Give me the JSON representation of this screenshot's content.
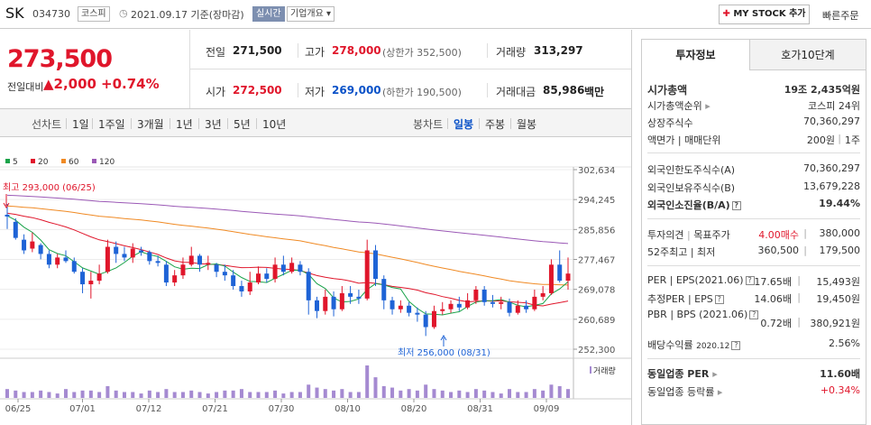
{
  "header": {
    "name": "SK",
    "code": "034730",
    "market": "코스피",
    "date": "2021.09.17 기준(장마감)",
    "realtime": "실시간",
    "company_info": "기업개요",
    "mystock_button": "MY STOCK 추가",
    "quick_order": "빠른주문"
  },
  "price": {
    "current": "273,500",
    "change_label": "전일대비",
    "change_value": "2,000",
    "change_pct": "+0.74%"
  },
  "summary": {
    "prev_label": "전일",
    "prev": "271,500",
    "high_label": "고가",
    "high": "278,000",
    "upper_limit": "(상한가 352,500)",
    "volume_label": "거래량",
    "volume": "313,297",
    "open_label": "시가",
    "open": "272,500",
    "low_label": "저가",
    "low": "269,000",
    "lower_limit": "(하한가 190,500)",
    "amount_label": "거래대금",
    "amount": "85,986",
    "amount_unit": "백만"
  },
  "periods": {
    "line_label": "선차트",
    "items": [
      "1일",
      "1주일",
      "3개월",
      "1년",
      "3년",
      "5년",
      "10년"
    ],
    "candle_label": "봉차트",
    "candle_items": [
      "일봉",
      "주봉",
      "월봉"
    ],
    "active_candle": "일봉"
  },
  "chart_data": {
    "type": "candlestick",
    "legend": [
      {
        "name": "5",
        "color": "#1aa34a"
      },
      {
        "name": "20",
        "color": "#e0162b"
      },
      {
        "name": "60",
        "color": "#f08a24"
      },
      {
        "name": "120",
        "color": "#9b59b6"
      }
    ],
    "y_ticks": [
      "302,634",
      "294,245",
      "285,856",
      "277,467",
      "269,078",
      "260,689",
      "252,300"
    ],
    "ylim": [
      252300,
      302634
    ],
    "x_ticks": [
      "06/25",
      "07/01",
      "07/12",
      "07/21",
      "07/30",
      "08/10",
      "08/20",
      "08/31",
      "09/09"
    ],
    "high_annotation": "최고 293,000 (06/25)",
    "low_annotation": "최저 256,000 (08/31)",
    "volume_label": "거래량",
    "candles": [
      [
        290000,
        289500,
        293000,
        286000
      ],
      [
        288000,
        283500,
        289000,
        283000
      ],
      [
        283000,
        280000,
        284500,
        279000
      ],
      [
        280500,
        282500,
        285000,
        279500
      ],
      [
        281500,
        279000,
        282000,
        277500
      ],
      [
        279000,
        276000,
        280000,
        275000
      ],
      [
        276000,
        278000,
        279000,
        275000
      ],
      [
        278000,
        277000,
        280000,
        276500
      ],
      [
        277000,
        274000,
        278000,
        273500
      ],
      [
        274000,
        270500,
        275000,
        268000
      ],
      [
        270500,
        271500,
        274000,
        266500
      ],
      [
        271500,
        273500,
        276000,
        270500
      ],
      [
        274000,
        281000,
        283000,
        273500
      ],
      [
        281000,
        279000,
        282500,
        276500
      ],
      [
        279000,
        278000,
        281000,
        277000
      ],
      [
        278000,
        280500,
        282000,
        276500
      ],
      [
        280000,
        279500,
        281000,
        278500
      ],
      [
        279500,
        277000,
        280000,
        276000
      ],
      [
        277000,
        276500,
        278500,
        275500
      ],
      [
        276000,
        271000,
        277000,
        270000
      ],
      [
        271000,
        273000,
        274500,
        270000
      ],
      [
        273000,
        276000,
        278000,
        272000
      ],
      [
        276000,
        278500,
        281000,
        275500
      ],
      [
        278500,
        276000,
        279000,
        274000
      ],
      [
        276000,
        276500,
        278500,
        274500
      ],
      [
        276000,
        274000,
        276500,
        272500
      ],
      [
        274000,
        273000,
        276000,
        271500
      ],
      [
        273000,
        270000,
        274500,
        269000
      ],
      [
        270000,
        268500,
        271500,
        267000
      ],
      [
        268500,
        271000,
        274000,
        267500
      ],
      [
        271000,
        273500,
        275500,
        270500
      ],
      [
        273500,
        272000,
        275000,
        271000
      ],
      [
        272000,
        276000,
        278000,
        271000
      ],
      [
        276000,
        274000,
        278500,
        273000
      ],
      [
        274000,
        276500,
        278000,
        273500
      ],
      [
        276000,
        274000,
        277000,
        273000
      ],
      [
        274000,
        266000,
        275000,
        262000
      ],
      [
        266000,
        263000,
        267000,
        261000
      ],
      [
        263000,
        267000,
        269000,
        262000
      ],
      [
        267000,
        263500,
        268500,
        261500
      ],
      [
        263500,
        268000,
        270000,
        263000
      ],
      [
        268000,
        267000,
        270000,
        265000
      ],
      [
        267000,
        266500,
        269000,
        265000
      ],
      [
        266500,
        280000,
        283000,
        266000
      ],
      [
        280000,
        272000,
        281500,
        270000
      ],
      [
        272000,
        266000,
        273000,
        263500
      ],
      [
        266000,
        263500,
        267000,
        262000
      ],
      [
        263500,
        264500,
        266000,
        262500
      ],
      [
        264500,
        262500,
        265500,
        261500
      ],
      [
        262500,
        262000,
        264000,
        260000
      ],
      [
        262000,
        258500,
        263000,
        256000
      ],
      [
        258500,
        263000,
        264500,
        258000
      ],
      [
        263000,
        263500,
        265500,
        262000
      ],
      [
        263500,
        265000,
        266000,
        262500
      ],
      [
        265000,
        264000,
        267000,
        263000
      ],
      [
        264000,
        266000,
        268000,
        263500
      ],
      [
        266000,
        269000,
        270000,
        265000
      ],
      [
        269000,
        265500,
        270000,
        264500
      ],
      [
        265500,
        265000,
        267500,
        264000
      ],
      [
        265000,
        265500,
        267000,
        263500
      ],
      [
        265500,
        262500,
        266500,
        261500
      ],
      [
        262500,
        264500,
        266000,
        262000
      ],
      [
        264500,
        263500,
        266000,
        262500
      ],
      [
        263500,
        267000,
        269000,
        263000
      ],
      [
        267000,
        268000,
        270000,
        266000
      ],
      [
        268000,
        276000,
        277500,
        267500
      ],
      [
        276000,
        271500,
        280000,
        271000
      ],
      [
        271500,
        273500,
        278000,
        269000
      ]
    ],
    "volumes": [
      6,
      5,
      4,
      4,
      5,
      4,
      3,
      6,
      4,
      5,
      5,
      4,
      8,
      5,
      4,
      4,
      3,
      5,
      4,
      6,
      4,
      4,
      5,
      4,
      3,
      4,
      5,
      5,
      6,
      4,
      4,
      4,
      5,
      3,
      4,
      4,
      9,
      7,
      6,
      5,
      6,
      4,
      4,
      22,
      14,
      8,
      7,
      5,
      6,
      5,
      9,
      6,
      5,
      4,
      5,
      4,
      6,
      5,
      4,
      3,
      6,
      4,
      4,
      6,
      5,
      9,
      8,
      6
    ]
  },
  "invest": {
    "tab1": "투자정보",
    "tab2": "호가10단계",
    "market_cap_label": "시가총액",
    "market_cap": "19조 2,435억원",
    "market_cap_rank_label": "시가총액순위",
    "market_cap_rank": "코스피 24위",
    "shares_label": "상장주식수",
    "shares": "70,360,297",
    "par_label": "액면가 | 매매단위",
    "par": "200원",
    "unit": "1주",
    "foreign_limit_label": "외국인한도주식수(A)",
    "foreign_limit": "70,360,297",
    "foreign_hold_label": "외국인보유주식수(B)",
    "foreign_hold": "13,679,228",
    "foreign_rate_label": "외국인소진율(B/A)",
    "foreign_rate": "19.44%",
    "opinion_label": "투자의견",
    "target_label": "목표주가",
    "opinion": "4.00매수",
    "target": "380,000",
    "w52_label": "52주최고 | 최저",
    "w52_high": "360,500",
    "w52_low": "179,500",
    "per_label": "PER | EPS(2021.06)",
    "per": "17.65배",
    "eps": "15,493원",
    "est_per_label": "추정PER | EPS",
    "est_per": "14.06배",
    "est_eps": "19,450원",
    "pbr_label": "PBR | BPS (2021.06)",
    "pbr": "0.72배",
    "bps": "380,921원",
    "div_label": "배당수익률",
    "div_date": "2020.12",
    "div": "2.56%",
    "sector_per_label": "동일업종 PER",
    "sector_per": "11.60배",
    "sector_rate_label": "동일업종 등락률",
    "sector_rate": "+0.34%"
  }
}
